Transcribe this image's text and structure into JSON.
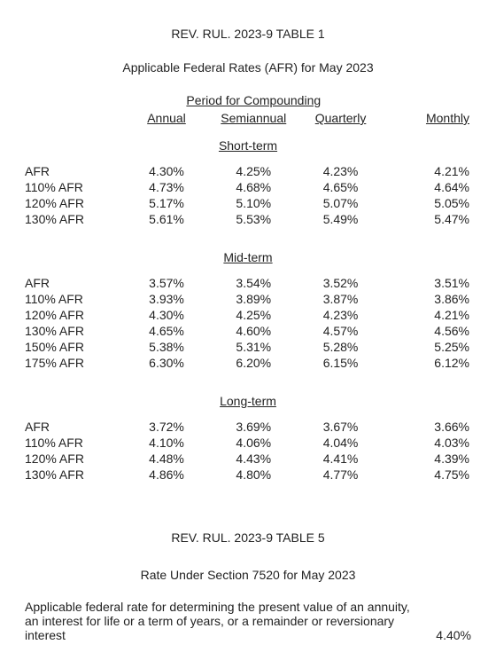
{
  "table1": {
    "title": "REV. RUL. 2023-9 TABLE 1",
    "subtitle": "Applicable Federal Rates (AFR) for May 2023",
    "compounding_header": "Period for Compounding",
    "columns": [
      "Annual",
      "Semiannual",
      "Quarterly",
      "Monthly"
    ],
    "sections": [
      {
        "name": "Short-term",
        "rows": [
          {
            "label": "AFR",
            "values": [
              "4.30%",
              "4.25%",
              "4.23%",
              "4.21%"
            ]
          },
          {
            "label": "110% AFR",
            "values": [
              "4.73%",
              "4.68%",
              "4.65%",
              "4.64%"
            ]
          },
          {
            "label": "120% AFR",
            "values": [
              "5.17%",
              "5.10%",
              "5.07%",
              "5.05%"
            ]
          },
          {
            "label": "130% AFR",
            "values": [
              "5.61%",
              "5.53%",
              "5.49%",
              "5.47%"
            ]
          }
        ]
      },
      {
        "name": "Mid-term",
        "rows": [
          {
            "label": "AFR",
            "values": [
              "3.57%",
              "3.54%",
              "3.52%",
              "3.51%"
            ]
          },
          {
            "label": "110% AFR",
            "values": [
              "3.93%",
              "3.89%",
              "3.87%",
              "3.86%"
            ]
          },
          {
            "label": "120% AFR",
            "values": [
              "4.30%",
              "4.25%",
              "4.23%",
              "4.21%"
            ]
          },
          {
            "label": "130% AFR",
            "values": [
              "4.65%",
              "4.60%",
              "4.57%",
              "4.56%"
            ]
          },
          {
            "label": "150% AFR",
            "values": [
              "5.38%",
              "5.31%",
              "5.28%",
              "5.25%"
            ]
          },
          {
            "label": "175% AFR",
            "values": [
              "6.30%",
              "6.20%",
              "6.15%",
              "6.12%"
            ]
          }
        ]
      },
      {
        "name": "Long-term",
        "rows": [
          {
            "label": "AFR",
            "values": [
              "3.72%",
              "3.69%",
              "3.67%",
              "3.66%"
            ]
          },
          {
            "label": "110% AFR",
            "values": [
              "4.10%",
              "4.06%",
              "4.04%",
              "4.03%"
            ]
          },
          {
            "label": "120% AFR",
            "values": [
              "4.48%",
              "4.43%",
              "4.41%",
              "4.39%"
            ]
          },
          {
            "label": "130% AFR",
            "values": [
              "4.86%",
              "4.80%",
              "4.77%",
              "4.75%"
            ]
          }
        ]
      }
    ]
  },
  "table5": {
    "title": "REV. RUL. 2023-9 TABLE 5",
    "subtitle": "Rate Under Section 7520 for May 2023",
    "note": "Applicable federal rate for determining the present value of an annuity, an interest for life or a term of years, or a remainder or reversionary interest",
    "rate": "4.40%"
  },
  "style": {
    "font_family": "Arial",
    "font_size_pt": 11,
    "text_color": "#222222",
    "background_color": "#ffffff"
  }
}
